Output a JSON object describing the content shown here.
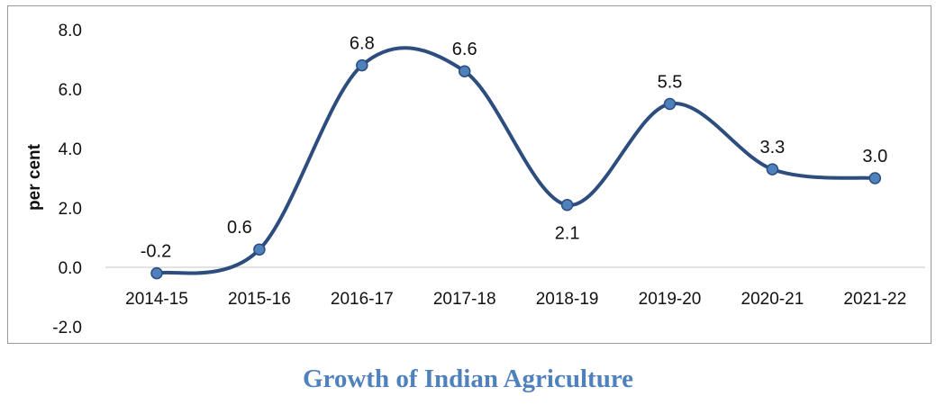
{
  "caption": "Growth of Indian Agriculture",
  "chart_data": {
    "type": "line",
    "categories": [
      "2014-15",
      "2015-16",
      "2016-17",
      "2017-18",
      "2018-19",
      "2019-20",
      "2020-21",
      "2021-22"
    ],
    "values": [
      -0.2,
      0.6,
      6.8,
      6.6,
      2.1,
      5.5,
      3.3,
      3.0
    ],
    "data_labels": [
      "-0.2",
      "0.6",
      "6.8",
      "6.6",
      "2.1",
      "5.5",
      "3.3",
      "3.0"
    ],
    "title": "",
    "xlabel": "",
    "ylabel": "per cent",
    "ylim": [
      -2.0,
      8.0
    ],
    "yticks": [
      -2.0,
      0.0,
      2.0,
      4.0,
      6.0,
      8.0
    ],
    "ytick_labels": [
      "-2.0",
      "0.0",
      "2.0",
      "4.0",
      "6.0",
      "8.0"
    ],
    "smooth": true,
    "grid": false,
    "legend": "none",
    "colors": {
      "line": "#2c4d7e",
      "marker": "#4f81bd",
      "caption": "#4f81bd",
      "axis": "#d9d9d9"
    }
  }
}
